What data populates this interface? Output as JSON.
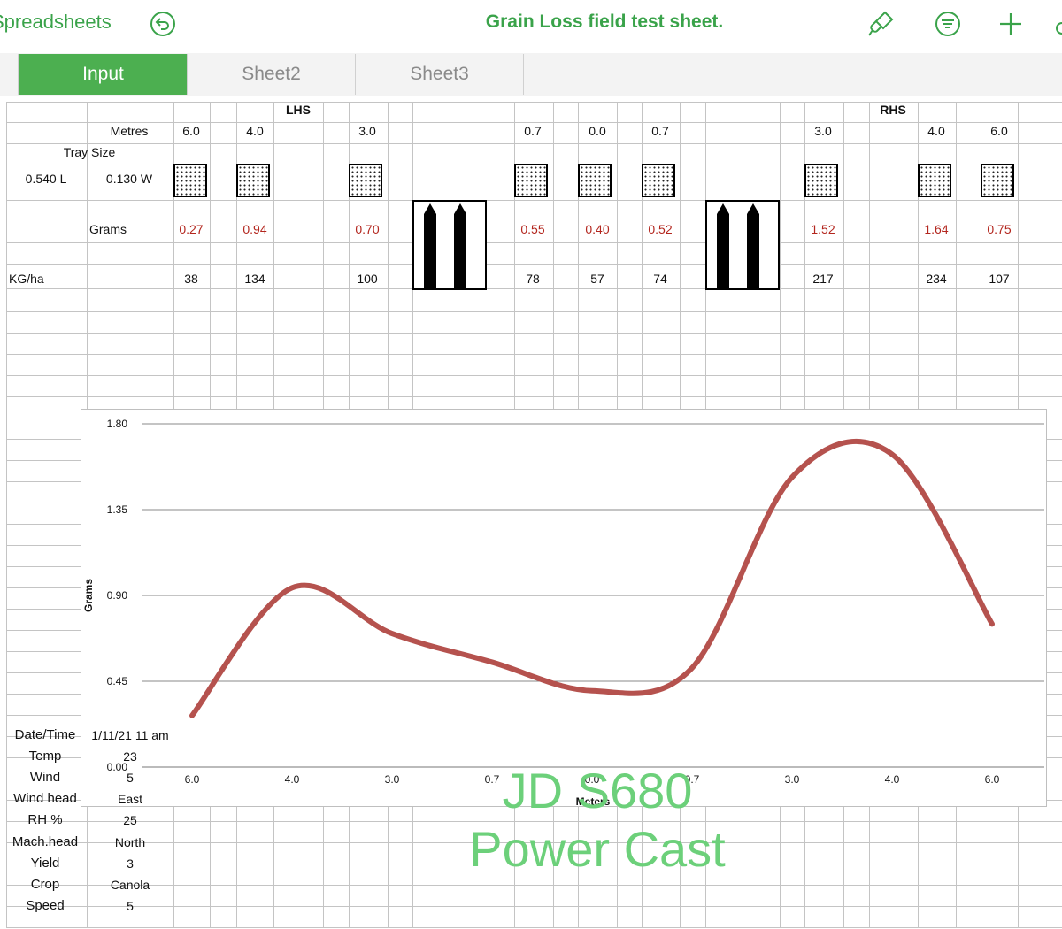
{
  "toolbar": {
    "back_label": "Spreadsheets",
    "title": "Grain Loss field test sheet.",
    "accent": "#3aa34a",
    "icons": [
      "undo-icon",
      "paintbrush-icon",
      "format-icon",
      "plus-icon"
    ]
  },
  "tabs": [
    {
      "label": "Input",
      "active": true
    },
    {
      "label": "Sheet2",
      "active": false
    },
    {
      "label": "Sheet3",
      "active": false
    }
  ],
  "table": {
    "lhs_label": "LHS",
    "rhs_label": "RHS",
    "metres_label": "Metres",
    "tray_size_label": "Tray Size",
    "tray_length": "0.540 L",
    "tray_width": "0.130 W",
    "grams_label": "Grams",
    "kgha_label": "KG/ha",
    "columns": [
      {
        "metres": "6.0",
        "grams": "0.27",
        "kgha": "38"
      },
      {
        "metres": "4.0",
        "grams": "0.94",
        "kgha": "134"
      },
      {
        "metres": "3.0",
        "grams": "0.70",
        "kgha": "100"
      },
      {
        "metres": "0.7",
        "grams": "0.55",
        "kgha": "78"
      },
      {
        "metres": "0.0",
        "grams": "0.40",
        "kgha": "57"
      },
      {
        "metres": "0.7",
        "grams": "0.52",
        "kgha": "74"
      },
      {
        "metres": "3.0",
        "grams": "1.52",
        "kgha": "217"
      },
      {
        "metres": "4.0",
        "grams": "1.64",
        "kgha": "234"
      },
      {
        "metres": "6.0",
        "grams": "0.75",
        "kgha": "107"
      }
    ]
  },
  "chart_data": {
    "type": "line",
    "categories": [
      "6.0",
      "4.0",
      "3.0",
      "0.7",
      "0.0",
      "0.7",
      "3.0",
      "4.0",
      "6.0"
    ],
    "series": [
      {
        "values": [
          0.27,
          0.94,
          0.7,
          0.55,
          0.4,
          0.52,
          1.52,
          1.64,
          0.75
        ],
        "color": "#b5524e"
      }
    ],
    "xlabel": "Meters",
    "ylabel": "Grams",
    "ylim": [
      0,
      1.8
    ],
    "yticks": [
      "0.00",
      "0.45",
      "0.90",
      "1.35",
      "1.80"
    ],
    "grid": true,
    "smooth": true
  },
  "info": [
    {
      "label": "Date/Time",
      "value": "1/11/21 11 am"
    },
    {
      "label": "Temp",
      "value": "23"
    },
    {
      "label": "Wind",
      "value": "5"
    },
    {
      "label": "Wind head",
      "value": "East"
    },
    {
      "label": "RH %",
      "value": "25"
    },
    {
      "label": "Mach.head",
      "value": "North"
    },
    {
      "label": "Yield",
      "value": "3"
    },
    {
      "label": "Crop",
      "value": "Canola"
    },
    {
      "label": "Speed",
      "value": "5"
    }
  ],
  "watermark": {
    "line1": "JD S680",
    "line2": "Power Cast",
    "color": "#6cd07a"
  }
}
